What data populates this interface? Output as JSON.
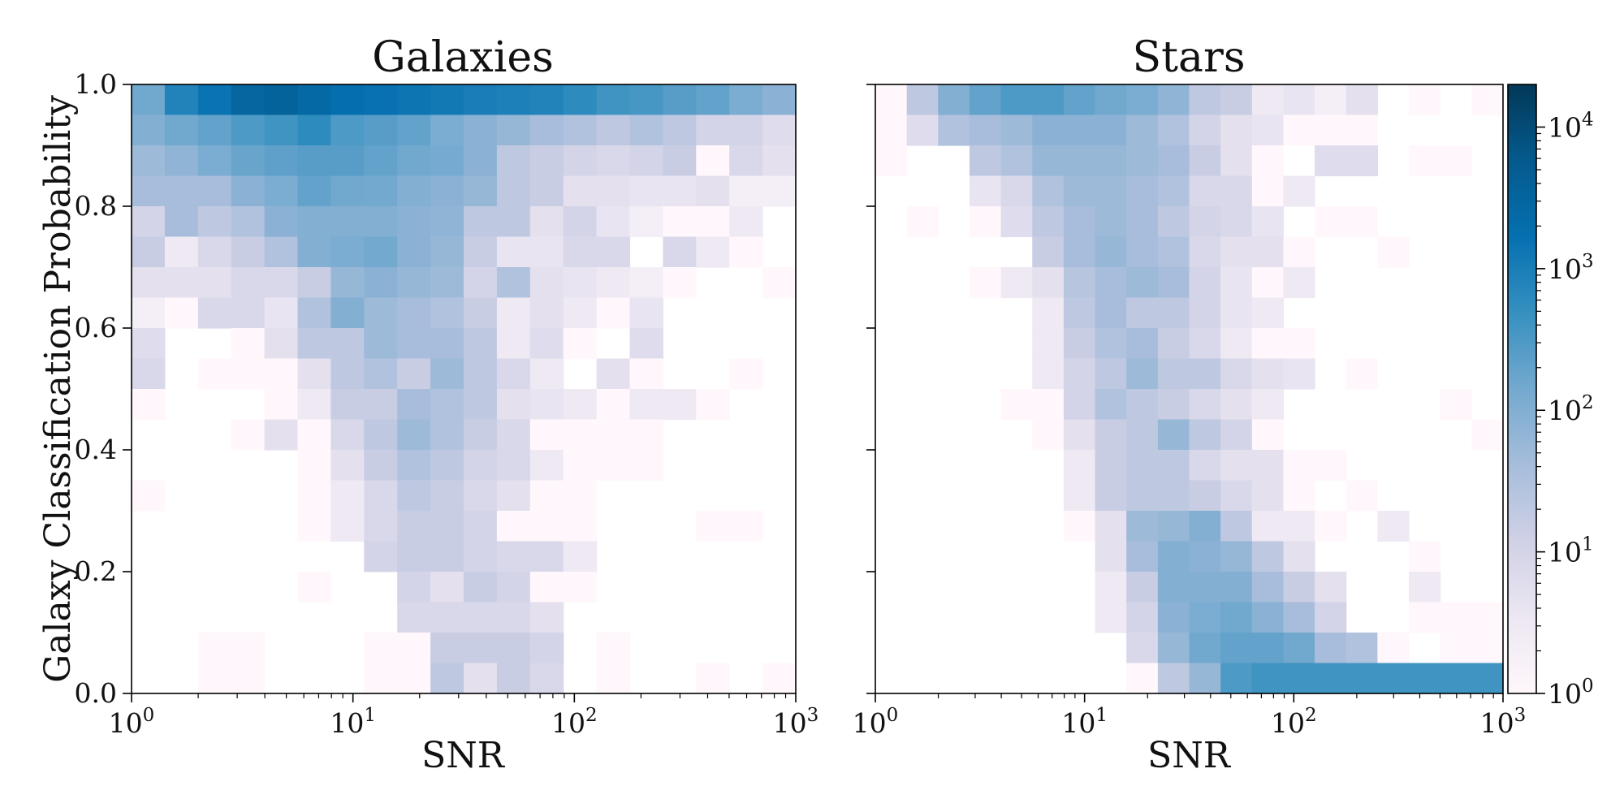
{
  "chart_data": [
    {
      "type": "heatmap",
      "title": "Galaxies",
      "xlabel": "SNR",
      "ylabel": "Galaxy Classification Probability",
      "x_scale": "log",
      "xlim": [
        1,
        1000
      ],
      "ylim": [
        0.0,
        1.0
      ],
      "x_ticks": [
        1,
        10,
        100,
        1000
      ],
      "x_tick_labels": [
        {
          "base": "10",
          "exp": "0"
        },
        {
          "base": "10",
          "exp": "1"
        },
        {
          "base": "10",
          "exp": "2"
        },
        {
          "base": "10",
          "exp": "3"
        }
      ],
      "y_ticks": [
        0.0,
        0.2,
        0.4,
        0.6,
        0.8,
        1.0
      ],
      "y_tick_labels": [
        "0.0",
        "0.2",
        "0.4",
        "0.6",
        "0.8",
        "1.0"
      ],
      "x_bin_edges_log10": [
        0.0,
        0.15,
        0.3,
        0.45,
        0.6,
        0.75,
        0.9,
        1.05,
        1.2,
        1.35,
        1.5,
        1.65,
        1.8,
        1.95,
        2.1,
        2.25,
        2.4,
        2.55,
        2.7,
        2.85,
        3.0
      ],
      "y_bin_edges": [
        0.0,
        0.05,
        0.1,
        0.15,
        0.2,
        0.25,
        0.3,
        0.35,
        0.4,
        0.45,
        0.5,
        0.55,
        0.6,
        0.65,
        0.7,
        0.75,
        0.8,
        0.85,
        0.9,
        0.95,
        1.0
      ],
      "counts_top_to_bottom": [
        [
          150,
          800,
          1500,
          3000,
          3500,
          2500,
          1800,
          1600,
          1400,
          1200,
          1000,
          900,
          800,
          600,
          400,
          350,
          250,
          200,
          120,
          80
        ],
        [
          100,
          150,
          200,
          300,
          400,
          600,
          300,
          250,
          200,
          120,
          80,
          60,
          40,
          30,
          20,
          30,
          20,
          10,
          10,
          6
        ],
        [
          50,
          70,
          120,
          180,
          220,
          250,
          250,
          200,
          150,
          130,
          80,
          20,
          15,
          10,
          8,
          10,
          15,
          1,
          8,
          5
        ],
        [
          40,
          40,
          40,
          80,
          120,
          200,
          150,
          140,
          100,
          80,
          60,
          20,
          15,
          5,
          5,
          4,
          4,
          5,
          2,
          2
        ],
        [
          10,
          40,
          20,
          30,
          80,
          100,
          100,
          100,
          80,
          70,
          20,
          20,
          5,
          10,
          4,
          2,
          1,
          1,
          3,
          0
        ],
        [
          15,
          3,
          8,
          15,
          30,
          100,
          120,
          140,
          80,
          60,
          15,
          4,
          4,
          8,
          8,
          0,
          8,
          3,
          1,
          0
        ],
        [
          5,
          5,
          5,
          8,
          8,
          15,
          60,
          80,
          60,
          50,
          10,
          30,
          5,
          4,
          3,
          2,
          1,
          0,
          0,
          1
        ],
        [
          2,
          1,
          8,
          8,
          4,
          30,
          100,
          50,
          40,
          30,
          15,
          3,
          5,
          3,
          1,
          4,
          0,
          0,
          0,
          0
        ],
        [
          6,
          0,
          0,
          1,
          5,
          20,
          20,
          50,
          40,
          40,
          20,
          3,
          6,
          1,
          0,
          6,
          0,
          0,
          0,
          0
        ],
        [
          8,
          0,
          1,
          1,
          1,
          5,
          20,
          30,
          15,
          50,
          20,
          8,
          3,
          0,
          5,
          1,
          0,
          0,
          1,
          0
        ],
        [
          1,
          0,
          0,
          0,
          1,
          3,
          15,
          15,
          40,
          30,
          20,
          5,
          4,
          3,
          1,
          3,
          3,
          1,
          0,
          0
        ],
        [
          0,
          0,
          0,
          1,
          5,
          1,
          8,
          20,
          50,
          30,
          15,
          8,
          1,
          1,
          1,
          1,
          0,
          0,
          0,
          0
        ],
        [
          0,
          0,
          0,
          0,
          0,
          1,
          5,
          15,
          30,
          20,
          10,
          8,
          3,
          1,
          1,
          1,
          0,
          0,
          0,
          0
        ],
        [
          1,
          0,
          0,
          0,
          0,
          1,
          3,
          8,
          20,
          15,
          8,
          5,
          1,
          1,
          0,
          0,
          0,
          0,
          0,
          0
        ],
        [
          0,
          0,
          0,
          0,
          0,
          1,
          3,
          8,
          15,
          15,
          10,
          1,
          1,
          1,
          0,
          0,
          0,
          1,
          1,
          0
        ],
        [
          0,
          0,
          0,
          0,
          0,
          0,
          0,
          10,
          15,
          15,
          10,
          8,
          8,
          3,
          0,
          0,
          0,
          0,
          0,
          0
        ],
        [
          0,
          0,
          0,
          0,
          0,
          1,
          0,
          0,
          10,
          5,
          15,
          10,
          1,
          1,
          0,
          0,
          0,
          0,
          0,
          0
        ],
        [
          0,
          0,
          0,
          0,
          0,
          0,
          0,
          0,
          8,
          8,
          8,
          8,
          5,
          0,
          0,
          0,
          0,
          0,
          0,
          0
        ],
        [
          0,
          0,
          1,
          1,
          0,
          0,
          0,
          1,
          1,
          15,
          15,
          15,
          10,
          0,
          1,
          0,
          0,
          0,
          0,
          0
        ],
        [
          0,
          0,
          1,
          1,
          0,
          0,
          0,
          1,
          1,
          20,
          5,
          15,
          8,
          0,
          1,
          0,
          0,
          1,
          0,
          1
        ]
      ]
    },
    {
      "type": "heatmap",
      "title": "Stars",
      "xlabel": "SNR",
      "ylabel": "",
      "x_scale": "log",
      "xlim": [
        1,
        1000
      ],
      "ylim": [
        0.0,
        1.0
      ],
      "x_ticks": [
        1,
        10,
        100,
        1000
      ],
      "x_tick_labels": [
        {
          "base": "10",
          "exp": "0"
        },
        {
          "base": "10",
          "exp": "1"
        },
        {
          "base": "10",
          "exp": "2"
        },
        {
          "base": "10",
          "exp": "3"
        }
      ],
      "y_ticks": [
        0.0,
        0.2,
        0.4,
        0.6,
        0.8,
        1.0
      ],
      "y_tick_labels": [],
      "x_bin_edges_log10": [
        0.0,
        0.15,
        0.3,
        0.45,
        0.6,
        0.75,
        0.9,
        1.05,
        1.2,
        1.35,
        1.5,
        1.65,
        1.8,
        1.95,
        2.1,
        2.25,
        2.4,
        2.55,
        2.7,
        2.85,
        3.0
      ],
      "y_bin_edges": [
        0.0,
        0.05,
        0.1,
        0.15,
        0.2,
        0.25,
        0.3,
        0.35,
        0.4,
        0.45,
        0.5,
        0.55,
        0.6,
        0.65,
        0.7,
        0.75,
        0.8,
        0.85,
        0.9,
        0.95,
        1.0
      ],
      "counts_top_to_bottom": [
        [
          1,
          20,
          100,
          200,
          300,
          300,
          200,
          150,
          120,
          70,
          20,
          15,
          3,
          4,
          2,
          5,
          0,
          1,
          0,
          1
        ],
        [
          1,
          6,
          30,
          40,
          50,
          80,
          80,
          80,
          50,
          30,
          10,
          5,
          4,
          1,
          1,
          1,
          0,
          0,
          0,
          0
        ],
        [
          1,
          0,
          0,
          20,
          30,
          60,
          60,
          60,
          50,
          40,
          15,
          5,
          1,
          0,
          6,
          6,
          0,
          1,
          1,
          0
        ],
        [
          0,
          0,
          0,
          4,
          8,
          30,
          50,
          50,
          40,
          30,
          8,
          8,
          1,
          3,
          0,
          0,
          0,
          0,
          0,
          0
        ],
        [
          0,
          1,
          0,
          1,
          6,
          20,
          40,
          50,
          40,
          20,
          10,
          8,
          4,
          0,
          1,
          1,
          0,
          0,
          0,
          0
        ],
        [
          0,
          0,
          0,
          0,
          0,
          15,
          40,
          60,
          40,
          30,
          8,
          5,
          5,
          1,
          0,
          0,
          1,
          0,
          0,
          0
        ],
        [
          0,
          0,
          0,
          1,
          3,
          5,
          25,
          40,
          50,
          40,
          10,
          4,
          1,
          3,
          0,
          0,
          0,
          0,
          0,
          0
        ],
        [
          0,
          0,
          0,
          0,
          0,
          3,
          20,
          40,
          20,
          20,
          10,
          4,
          3,
          0,
          0,
          0,
          0,
          0,
          0,
          0
        ],
        [
          0,
          0,
          0,
          0,
          0,
          3,
          15,
          30,
          40,
          15,
          8,
          3,
          1,
          1,
          0,
          0,
          0,
          0,
          0,
          0
        ],
        [
          0,
          0,
          0,
          0,
          0,
          3,
          10,
          20,
          50,
          20,
          20,
          8,
          5,
          4,
          0,
          1,
          0,
          0,
          0,
          0
        ],
        [
          0,
          0,
          0,
          0,
          1,
          1,
          10,
          30,
          20,
          15,
          8,
          5,
          3,
          0,
          0,
          0,
          0,
          0,
          1,
          0
        ],
        [
          0,
          0,
          0,
          0,
          0,
          1,
          5,
          15,
          20,
          60,
          20,
          10,
          1,
          0,
          0,
          0,
          0,
          0,
          0,
          1
        ],
        [
          0,
          0,
          0,
          0,
          0,
          0,
          3,
          15,
          20,
          20,
          8,
          5,
          5,
          1,
          1,
          0,
          0,
          0,
          0,
          0
        ],
        [
          0,
          0,
          0,
          0,
          0,
          0,
          3,
          15,
          20,
          20,
          15,
          8,
          5,
          1,
          0,
          1,
          0,
          0,
          0,
          0
        ],
        [
          0,
          0,
          0,
          0,
          0,
          0,
          1,
          5,
          50,
          60,
          100,
          20,
          3,
          3,
          1,
          0,
          3,
          0,
          0,
          0
        ],
        [
          0,
          0,
          0,
          0,
          0,
          0,
          0,
          5,
          40,
          100,
          80,
          60,
          20,
          5,
          0,
          0,
          0,
          1,
          0,
          0
        ],
        [
          0,
          0,
          0,
          0,
          0,
          0,
          0,
          3,
          15,
          100,
          100,
          100,
          40,
          15,
          5,
          0,
          0,
          3,
          0,
          0
        ],
        [
          0,
          0,
          0,
          0,
          0,
          0,
          0,
          3,
          10,
          80,
          120,
          150,
          80,
          40,
          10,
          0,
          0,
          1,
          1,
          1
        ],
        [
          0,
          0,
          0,
          0,
          0,
          0,
          0,
          0,
          8,
          60,
          150,
          200,
          200,
          150,
          40,
          30,
          1,
          0,
          1,
          1
        ],
        [
          0,
          0,
          0,
          0,
          0,
          0,
          0,
          0,
          1,
          20,
          60,
          300,
          400,
          400,
          400,
          400,
          400,
          400,
          400,
          400
        ]
      ]
    }
  ],
  "colorbar": {
    "scale": "log",
    "range": [
      1,
      20000
    ],
    "ticks": [
      {
        "value": 1,
        "base": "10",
        "exp": "0"
      },
      {
        "value": 10,
        "base": "10",
        "exp": "1"
      },
      {
        "value": 100,
        "base": "10",
        "exp": "2"
      },
      {
        "value": 1000,
        "base": "10",
        "exp": "3"
      },
      {
        "value": 10000,
        "base": "10",
        "exp": "4"
      }
    ],
    "colormap": [
      "#fff7fb",
      "#ece7f2",
      "#d0d1e6",
      "#a6bddb",
      "#74a9cf",
      "#3690c0",
      "#0570b0",
      "#045a8d",
      "#023858"
    ]
  }
}
